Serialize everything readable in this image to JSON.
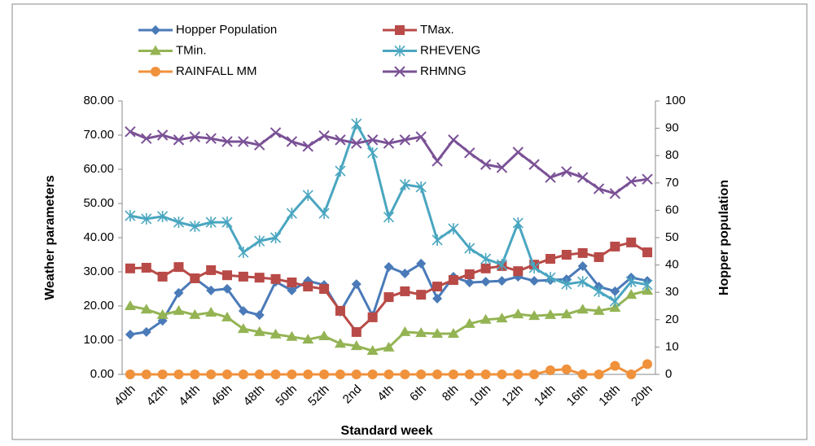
{
  "chart_data": {
    "type": "line",
    "xlabel": "Standard week",
    "ylabel": "Weather parameters",
    "y2label": "Hopper population",
    "categories": [
      "40th",
      null,
      "42th",
      null,
      "44th",
      null,
      "46th",
      null,
      "48th",
      null,
      "50th",
      null,
      "52th",
      null,
      "2nd",
      null,
      "4th",
      null,
      "6th",
      null,
      "8th",
      null,
      "10th",
      null,
      "12th",
      null,
      "14th",
      null,
      "16th",
      null,
      "18th",
      null,
      "20th"
    ],
    "ylim": [
      0,
      80
    ],
    "yticks": [
      {
        "value": 0,
        "label": "0.00"
      },
      {
        "value": 10,
        "label": "10.00"
      },
      {
        "value": 20,
        "label": "20.00"
      },
      {
        "value": 30,
        "label": "30.00"
      },
      {
        "value": 40,
        "label": "40.00"
      },
      {
        "value": 50,
        "label": "50.00"
      },
      {
        "value": 60,
        "label": "60.00"
      },
      {
        "value": 70,
        "label": "70.00"
      },
      {
        "value": 80,
        "label": "80.00"
      }
    ],
    "y2lim": [
      0,
      100
    ],
    "y2ticks": [
      0,
      10,
      20,
      30,
      40,
      50,
      60,
      70,
      80,
      90,
      100
    ],
    "grid": false,
    "legend": "top",
    "series": [
      {
        "name": "Hopper Population",
        "color": "#4a7ab8",
        "marker": "diamond",
        "axis": "y2",
        "values": [
          14.6,
          15.5,
          19.6,
          29.8,
          35.1,
          30.7,
          31.3,
          23.2,
          21.7,
          33.9,
          30.7,
          34.2,
          32.7,
          22.9,
          33.0,
          21.4,
          39.3,
          36.9,
          40.5,
          27.7,
          35.7,
          33.6,
          33.9,
          34.2,
          35.7,
          34.2,
          34.5,
          34.8,
          39.6,
          32.1,
          30.4,
          35.4,
          34.2
        ]
      },
      {
        "name": "TMax.",
        "color": "#b84a47",
        "marker": "square",
        "values": [
          31.0,
          31.2,
          28.6,
          31.4,
          28.1,
          30.5,
          29.0,
          28.6,
          28.3,
          27.9,
          26.9,
          25.7,
          25.0,
          18.6,
          12.4,
          16.7,
          22.6,
          24.3,
          23.3,
          25.7,
          27.6,
          29.3,
          31.0,
          31.7,
          30.2,
          32.1,
          33.8,
          35.0,
          35.5,
          34.3,
          37.4,
          38.6,
          35.7
        ]
      },
      {
        "name": "TMin.",
        "color": "#94b454",
        "marker": "triangle",
        "values": [
          20.0,
          19.0,
          17.4,
          18.6,
          17.4,
          18.1,
          16.7,
          13.3,
          12.4,
          11.7,
          11.0,
          10.2,
          11.2,
          9.0,
          8.3,
          6.9,
          7.9,
          12.4,
          12.1,
          11.9,
          11.9,
          14.8,
          16.0,
          16.4,
          17.6,
          17.1,
          17.4,
          17.6,
          19.0,
          18.6,
          19.5,
          23.3,
          24.5
        ]
      },
      {
        "name": "RHEVENG",
        "color": "#4aa6c0",
        "marker": "asterisk",
        "values": [
          46.4,
          45.5,
          46.2,
          44.5,
          43.3,
          44.5,
          44.5,
          35.7,
          39.0,
          40.0,
          47.1,
          52.4,
          47.1,
          59.5,
          73.3,
          64.8,
          46.0,
          55.5,
          54.8,
          39.3,
          42.6,
          36.9,
          33.8,
          32.1,
          44.3,
          31.2,
          28.3,
          26.4,
          27.1,
          24.3,
          21.4,
          27.1,
          26.2
        ]
      },
      {
        "name": "RAINFALL MM",
        "color": "#f0913c",
        "marker": "circle",
        "values": [
          0,
          0,
          0,
          0,
          0,
          0,
          0,
          0,
          0,
          0,
          0,
          0,
          0,
          0,
          0,
          0,
          0,
          0,
          0,
          0,
          0,
          0,
          0,
          0,
          0,
          0,
          1.2,
          1.5,
          0,
          0,
          2.5,
          0,
          3.0
        ]
      },
      {
        "name": "RHMNG",
        "color": "#7a5196",
        "marker": "x",
        "values": [
          71.0,
          69.0,
          70.0,
          68.6,
          69.5,
          69.0,
          68.1,
          68.1,
          67.1,
          70.7,
          68.1,
          66.7,
          69.8,
          68.6,
          67.6,
          68.6,
          67.6,
          68.6,
          69.5,
          62.4,
          68.6,
          64.8,
          61.4,
          60.5,
          65.0,
          61.4,
          57.6,
          59.3,
          57.6,
          54.3,
          52.9,
          56.4,
          57.1
        ]
      }
    ]
  }
}
